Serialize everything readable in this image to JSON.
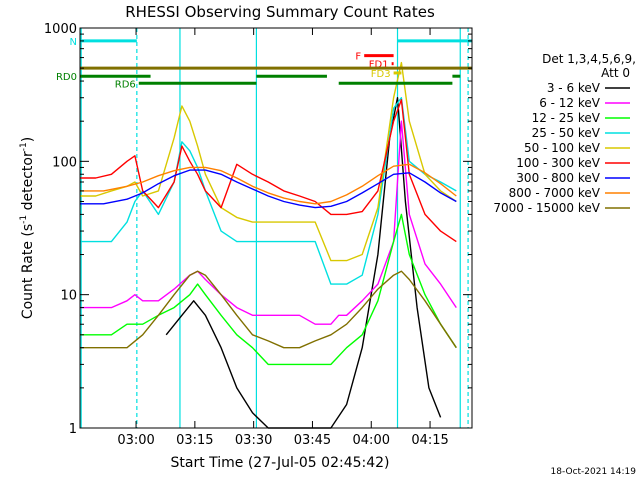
{
  "chart_data": {
    "type": "line",
    "title": "RHESSI Observing Summary Count Rates",
    "xlabel": "Start Time (27-Jul-05 02:45:42)",
    "ylabel_parts": {
      "main": "Count Rate (s",
      "sup1": "-1",
      "mid": " detector",
      "sup2": "-1",
      "end": ")"
    },
    "yscale": "log",
    "ylim": [
      1,
      1000
    ],
    "xlim_minutes": [
      0,
      100
    ],
    "x_ticks": [
      {
        "minute": 14.3,
        "label": "03:00"
      },
      {
        "minute": 29.3,
        "label": "03:15"
      },
      {
        "minute": 44.3,
        "label": "03:30"
      },
      {
        "minute": 59.3,
        "label": "03:45"
      },
      {
        "minute": 74.3,
        "label": "04:00"
      },
      {
        "minute": 89.3,
        "label": "04:15"
      }
    ],
    "y_ticks": [
      {
        "value": 1,
        "label": "1"
      },
      {
        "value": 10,
        "label": "10"
      },
      {
        "value": 100,
        "label": "100"
      },
      {
        "value": 1000,
        "label": "1000"
      }
    ],
    "legend_header": [
      "Det 1,3,4,5,6,9,",
      "Att 0"
    ],
    "series": [
      {
        "name": "3 - 6 keV",
        "color": "#000000",
        "x": [
          0,
          10,
          15,
          18,
          22,
          26,
          29,
          32,
          36,
          40,
          44,
          48,
          52,
          56,
          60,
          64,
          68,
          72,
          76,
          79,
          81,
          83,
          86,
          89,
          92,
          96
        ],
        "y": [
          null,
          null,
          null,
          null,
          5,
          7,
          9,
          7,
          4,
          2,
          1.3,
          1,
          1,
          1,
          1,
          1,
          1.5,
          4,
          20,
          150,
          300,
          50,
          8,
          2,
          1.2,
          null
        ]
      },
      {
        "name": "6 - 12 keV",
        "color": "#ff00ff",
        "x": [
          0,
          4,
          8,
          12,
          14,
          16,
          20,
          24,
          28,
          30,
          32,
          36,
          40,
          44,
          48,
          52,
          56,
          60,
          64,
          66,
          68,
          72,
          76,
          80,
          82,
          84,
          88,
          92,
          96
        ],
        "y": [
          8,
          8,
          8,
          9,
          10,
          9,
          9,
          11,
          14,
          15,
          13,
          10,
          8,
          7,
          7,
          7,
          7,
          6,
          6,
          7,
          7,
          9,
          12,
          25,
          200,
          40,
          17,
          12,
          8
        ]
      },
      {
        "name": "12 - 25 keV",
        "color": "#00ff00",
        "x": [
          0,
          4,
          8,
          12,
          16,
          20,
          24,
          28,
          30,
          32,
          36,
          40,
          44,
          48,
          52,
          56,
          60,
          64,
          68,
          72,
          76,
          80,
          82,
          84,
          88,
          92,
          96
        ],
        "y": [
          5,
          5,
          5,
          6,
          6,
          7,
          8,
          10,
          12,
          10,
          7,
          5,
          4,
          3,
          3,
          3,
          3,
          3,
          4,
          5,
          9,
          25,
          40,
          20,
          10,
          6,
          4
        ]
      },
      {
        "name": "25 - 50 keV",
        "color": "#00e0e0",
        "x": [
          0,
          4,
          8,
          12,
          14,
          16,
          20,
          24,
          26,
          28,
          30,
          32,
          36,
          40,
          44,
          48,
          52,
          56,
          60,
          64,
          68,
          72,
          76,
          80,
          82,
          84,
          88,
          92,
          96
        ],
        "y": [
          25,
          25,
          25,
          35,
          50,
          60,
          40,
          70,
          140,
          120,
          90,
          60,
          30,
          25,
          25,
          25,
          25,
          25,
          25,
          12,
          12,
          14,
          40,
          250,
          300,
          100,
          80,
          70,
          60
        ]
      },
      {
        "name": "50 - 100 keV",
        "color": "#d8c800",
        "x": [
          0,
          4,
          8,
          12,
          14,
          16,
          20,
          24,
          26,
          28,
          30,
          32,
          36,
          40,
          44,
          48,
          52,
          56,
          60,
          64,
          68,
          72,
          76,
          80,
          82,
          84,
          88,
          92,
          96
        ],
        "y": [
          55,
          55,
          60,
          65,
          70,
          55,
          60,
          150,
          260,
          200,
          130,
          80,
          45,
          38,
          35,
          35,
          35,
          35,
          35,
          18,
          18,
          20,
          45,
          300,
          550,
          200,
          80,
          60,
          50
        ]
      },
      {
        "name": "100 - 300 keV",
        "color": "#ff0000",
        "x": [
          0,
          4,
          8,
          12,
          14,
          16,
          20,
          24,
          26,
          28,
          30,
          32,
          36,
          40,
          44,
          48,
          52,
          56,
          60,
          64,
          68,
          72,
          76,
          80,
          82,
          84,
          88,
          92,
          96
        ],
        "y": [
          75,
          75,
          80,
          100,
          110,
          60,
          45,
          70,
          130,
          100,
          80,
          60,
          45,
          95,
          80,
          70,
          60,
          55,
          50,
          40,
          40,
          42,
          60,
          200,
          290,
          80,
          40,
          30,
          25
        ]
      },
      {
        "name": "300 - 800 keV",
        "color": "#0000ff",
        "x": [
          0,
          6,
          12,
          16,
          20,
          24,
          28,
          32,
          36,
          40,
          44,
          48,
          52,
          56,
          60,
          64,
          68,
          72,
          76,
          80,
          84,
          88,
          92,
          96
        ],
        "y": [
          48,
          48,
          52,
          58,
          68,
          78,
          86,
          86,
          80,
          70,
          62,
          55,
          50,
          47,
          45,
          46,
          50,
          58,
          68,
          80,
          82,
          70,
          58,
          50
        ]
      },
      {
        "name": "800 - 7000 keV",
        "color": "#ff8000",
        "x": [
          0,
          6,
          12,
          16,
          20,
          24,
          28,
          32,
          36,
          40,
          44,
          48,
          52,
          56,
          60,
          64,
          68,
          72,
          76,
          80,
          84,
          88,
          92,
          96
        ],
        "y": [
          60,
          60,
          65,
          70,
          78,
          85,
          90,
          90,
          85,
          75,
          65,
          58,
          53,
          50,
          48,
          50,
          56,
          65,
          78,
          92,
          95,
          82,
          68,
          55
        ]
      },
      {
        "name": "7000 - 15000 keV",
        "color": "#807000",
        "x": [
          0,
          6,
          12,
          16,
          20,
          24,
          28,
          30,
          32,
          36,
          40,
          44,
          48,
          52,
          56,
          60,
          64,
          68,
          72,
          76,
          80,
          82,
          84,
          88,
          92,
          96
        ],
        "y": [
          4,
          4,
          4,
          5,
          7,
          10,
          14,
          15,
          14,
          10,
          7,
          5,
          4.5,
          4,
          4,
          4.5,
          5,
          6,
          8,
          11,
          14,
          15,
          13,
          9,
          6,
          4
        ]
      }
    ],
    "state_bars": [
      {
        "label": "N",
        "color": "#00e0e0",
        "y": 800,
        "segments": [
          [
            0,
            14.5
          ],
          [
            81,
            100
          ]
        ]
      },
      {
        "label": "F",
        "color": "#ff0000",
        "y": 620,
        "segments": [
          [
            72.5,
            80
          ]
        ]
      },
      {
        "label": "FD1",
        "color": "#ff0000",
        "y": 540,
        "segments": [
          [
            79.5,
            80
          ]
        ]
      },
      {
        "label": "FD3",
        "color": "#d8c800",
        "y": 460,
        "segments": [
          [
            80,
            82
          ]
        ]
      },
      {
        "label": "",
        "color": "#807000",
        "y": 500,
        "segments": [
          [
            0,
            100
          ]
        ]
      },
      {
        "label": "RD0",
        "color": "#008000",
        "y": 435,
        "segments": [
          [
            0,
            18
          ],
          [
            45,
            63
          ],
          [
            95,
            97
          ]
        ]
      },
      {
        "label": "RD6",
        "color": "#008000",
        "y": 385,
        "segments": [
          [
            15,
            45
          ],
          [
            66,
            95
          ]
        ]
      }
    ],
    "vlines": [
      {
        "minute": 0.3,
        "color": "#00e0e0",
        "style": "solid"
      },
      {
        "minute": 14.5,
        "color": "#00e0e0",
        "style": "dashed"
      },
      {
        "minute": 25.5,
        "color": "#00e0e0",
        "style": "solid"
      },
      {
        "minute": 45.0,
        "color": "#00e0e0",
        "style": "solid"
      },
      {
        "minute": 81.0,
        "color": "#00e0e0",
        "style": "solid"
      },
      {
        "minute": 97.0,
        "color": "#00e0e0",
        "style": "solid"
      },
      {
        "minute": 99.0,
        "color": "#00e0e0",
        "style": "dashed"
      }
    ],
    "grid": false,
    "legend_position": "right"
  },
  "footer_date": "18-Oct-2021 14:19"
}
